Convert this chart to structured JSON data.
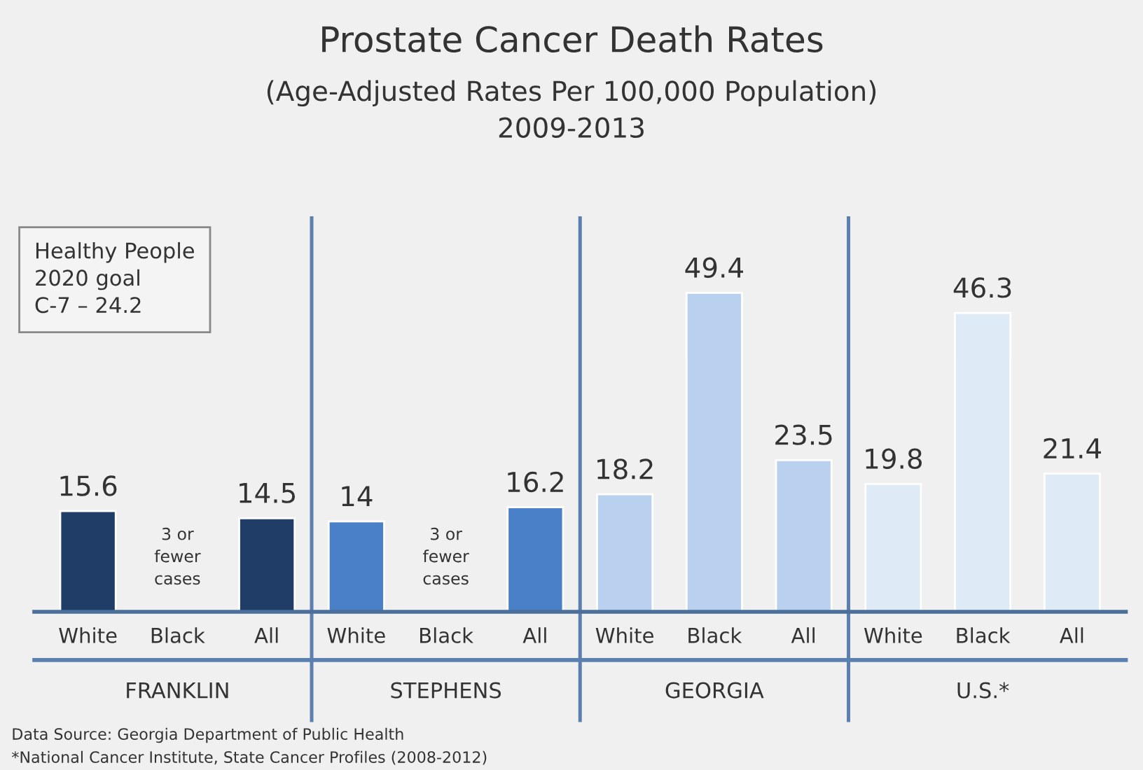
{
  "chart_data": {
    "type": "bar",
    "title": "Prostate Cancer Death Rates",
    "subtitle": "(Age-Adjusted Rates Per 100,000 Population)\n2009-2013",
    "categories": [
      "White",
      "Black",
      "All",
      "White",
      "Black",
      "All",
      "White",
      "Black",
      "All",
      "White",
      "Black",
      "All"
    ],
    "values": [
      15.6,
      null,
      14.5,
      14,
      null,
      16.2,
      18.2,
      49.4,
      23.5,
      19.8,
      46.3,
      21.4
    ],
    "colors": [
      "#1f3d66",
      "#1f3d66",
      "#1f3d66",
      "#4a80c8",
      "#4a80c8",
      "#4a80c8",
      "#b9d1ee",
      "#b9d1ee",
      "#b9d1ee",
      "#dfeaf7",
      "#dfeaf7",
      "#dfeaf7"
    ],
    "data_labels": true,
    "grid": false,
    "legend": false,
    "annotations": [
      "Healthy People\n2020 goal\nC-7 – 24.2",
      "3 or\nfewer\ncases",
      "3 or\nfewer\ncases",
      "FRANKLIN",
      "STEPHENS",
      "GEORGIA",
      "U.S.*",
      "Data Source: Georgia Department of Public Health",
      "*National Cancer Institute, State Cancer Profiles (2008-2012)"
    ]
  }
}
